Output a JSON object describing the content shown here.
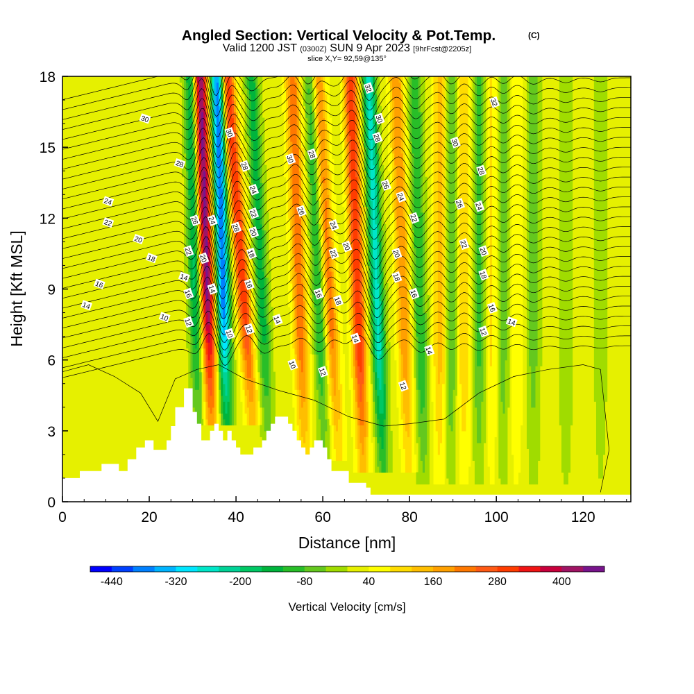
{
  "title": {
    "main": "Angled Section: Vertical Velocity & Pot.Temp.",
    "main_tag": "(C)",
    "valid_prefix": "Valid 1200 JST",
    "valid_utc": "(0300Z)",
    "valid_date": "SUN 9 Apr 2023",
    "forecast": "[9hrFcst@2205z]",
    "slice": "slice X,Y= 92,59@135°"
  },
  "chart_data": {
    "type": "heatmap",
    "xlabel": "Distance [nm]",
    "ylabel": "Height [Kft MSL]",
    "xlim": [
      0,
      131
    ],
    "ylim": [
      0,
      18
    ],
    "x_ticks": [
      0,
      20,
      40,
      60,
      80,
      100,
      120
    ],
    "y_ticks": [
      0,
      3,
      6,
      9,
      12,
      15,
      18
    ],
    "colorbar": {
      "title": "Vertical Velocity [cm/s]",
      "levels": [
        -480,
        -440,
        -400,
        -360,
        -320,
        -280,
        -240,
        -200,
        -160,
        -120,
        -80,
        -40,
        0,
        40,
        80,
        120,
        160,
        200,
        240,
        280,
        320,
        360,
        400,
        440,
        480
      ],
      "colors": [
        "#0000ff",
        "#0040ff",
        "#0080ff",
        "#00b4ff",
        "#00e6ff",
        "#00e6c8",
        "#00d296",
        "#00c864",
        "#00b43c",
        "#28be28",
        "#64c81e",
        "#a0dc00",
        "#e6f000",
        "#ffff00",
        "#ffdc00",
        "#ffbe00",
        "#ffa000",
        "#ff7800",
        "#ff5a14",
        "#ff3c00",
        "#f01414",
        "#c8003c",
        "#a01464",
        "#78148c"
      ],
      "tick_labels": [
        -440,
        -320,
        -200,
        -80,
        40,
        160,
        280,
        400
      ]
    },
    "terrain_kft": [
      [
        0,
        1.0
      ],
      [
        4,
        1.0
      ],
      [
        4,
        1.3
      ],
      [
        9,
        1.3
      ],
      [
        9,
        1.6
      ],
      [
        13,
        1.6
      ],
      [
        13,
        1.3
      ],
      [
        15,
        1.3
      ],
      [
        15,
        1.8
      ],
      [
        17,
        1.8
      ],
      [
        17,
        2.3
      ],
      [
        19,
        2.3
      ],
      [
        19,
        2.6
      ],
      [
        21,
        2.6
      ],
      [
        21,
        2.2
      ],
      [
        24,
        2.2
      ],
      [
        24,
        2.6
      ],
      [
        25,
        2.6
      ],
      [
        25,
        3.2
      ],
      [
        26,
        3.2
      ],
      [
        26,
        4.0
      ],
      [
        28,
        4.0
      ],
      [
        28,
        4.8
      ],
      [
        30,
        4.8
      ],
      [
        30,
        3.8
      ],
      [
        31,
        3.8
      ],
      [
        31,
        3.3
      ],
      [
        32,
        3.3
      ],
      [
        32,
        2.6
      ],
      [
        34,
        2.6
      ],
      [
        34,
        3.0
      ],
      [
        35,
        3.0
      ],
      [
        35,
        3.3
      ],
      [
        36,
        3.3
      ],
      [
        36,
        3.0
      ],
      [
        37,
        3.0
      ],
      [
        37,
        2.6
      ],
      [
        38,
        2.6
      ],
      [
        38,
        3.0
      ],
      [
        39,
        3.0
      ],
      [
        39,
        2.6
      ],
      [
        40,
        2.6
      ],
      [
        40,
        2.3
      ],
      [
        41,
        2.3
      ],
      [
        41,
        2.0
      ],
      [
        44,
        2.0
      ],
      [
        44,
        2.3
      ],
      [
        46,
        2.3
      ],
      [
        46,
        2.6
      ],
      [
        47,
        2.6
      ],
      [
        47,
        3.0
      ],
      [
        48,
        3.0
      ],
      [
        48,
        3.3
      ],
      [
        49,
        3.3
      ],
      [
        49,
        3.6
      ],
      [
        52,
        3.6
      ],
      [
        52,
        3.3
      ],
      [
        53,
        3.3
      ],
      [
        53,
        3.0
      ],
      [
        54,
        3.0
      ],
      [
        54,
        2.6
      ],
      [
        55,
        2.6
      ],
      [
        55,
        2.3
      ],
      [
        56,
        2.3
      ],
      [
        56,
        2.0
      ],
      [
        57,
        2.0
      ],
      [
        57,
        2.3
      ],
      [
        58,
        2.3
      ],
      [
        58,
        2.6
      ],
      [
        60,
        2.6
      ],
      [
        60,
        2.3
      ],
      [
        61,
        2.3
      ],
      [
        61,
        1.8
      ],
      [
        62,
        1.8
      ],
      [
        62,
        1.3
      ],
      [
        66,
        1.3
      ],
      [
        66,
        0.8
      ],
      [
        70,
        0.8
      ],
      [
        70,
        0.6
      ],
      [
        71,
        0.6
      ],
      [
        71,
        0.3
      ],
      [
        131,
        0.3
      ]
    ],
    "updraft_axes": [
      {
        "x": 34.0,
        "y": 5.5,
        "slope": -0.18,
        "strength": 440
      },
      {
        "x": 43.0,
        "y": 5.5,
        "slope": -0.4,
        "strength": 300
      },
      {
        "x": 55.5,
        "y": 4.0,
        "slope": -0.18,
        "strength": 220
      },
      {
        "x": 63.0,
        "y": 4.0,
        "slope": -0.3,
        "strength": 200
      },
      {
        "x": 69.0,
        "y": 3.5,
        "slope": -0.18,
        "strength": 300
      },
      {
        "x": 79.5,
        "y": 3.5,
        "slope": -0.18,
        "strength": 180
      },
      {
        "x": 87.0,
        "y": 3.0,
        "slope": 0.0,
        "strength": 120
      },
      {
        "x": 92.5,
        "y": 3.0,
        "slope": 0.0,
        "strength": 100
      },
      {
        "x": 99.0,
        "y": 3.0,
        "slope": 0.0,
        "strength": 70
      },
      {
        "x": 104.5,
        "y": 3.0,
        "slope": 0.0,
        "strength": 60
      }
    ],
    "downdraft_axes": [
      {
        "x": 31.0,
        "y": 5.5,
        "slope": -0.12,
        "strength": 200
      },
      {
        "x": 37.5,
        "y": 5.5,
        "slope": -0.15,
        "strength": 420
      },
      {
        "x": 47.0,
        "y": 4.5,
        "slope": -0.25,
        "strength": 160
      },
      {
        "x": 60.0,
        "y": 4.0,
        "slope": -0.2,
        "strength": 150
      },
      {
        "x": 73.5,
        "y": 3.5,
        "slope": -0.2,
        "strength": 280
      },
      {
        "x": 83.0,
        "y": 3.0,
        "slope": -0.12,
        "strength": 140
      },
      {
        "x": 89.5,
        "y": 3.0,
        "slope": 0.0,
        "strength": 110
      },
      {
        "x": 96.0,
        "y": 3.0,
        "slope": 0.0,
        "strength": 110
      },
      {
        "x": 101.5,
        "y": 3.0,
        "slope": 0.0,
        "strength": 90
      },
      {
        "x": 108.5,
        "y": 3.0,
        "slope": 0.0,
        "strength": 80
      },
      {
        "x": 116.0,
        "y": 3.0,
        "slope": 0.0,
        "strength": 60
      },
      {
        "x": 124.0,
        "y": 3.0,
        "slope": 0.0,
        "strength": 50
      }
    ],
    "isentrope_labels": [
      {
        "text": "30",
        "x": 19,
        "y": 16.2
      },
      {
        "text": "30",
        "x": 38.5,
        "y": 15.6
      },
      {
        "text": "30",
        "x": 52.5,
        "y": 14.5
      },
      {
        "text": "28",
        "x": 27,
        "y": 14.3
      },
      {
        "text": "28",
        "x": 42,
        "y": 14.2
      },
      {
        "text": "28",
        "x": 57.5,
        "y": 14.7
      },
      {
        "text": "32",
        "x": 70.5,
        "y": 17.5
      },
      {
        "text": "30",
        "x": 73,
        "y": 16.2
      },
      {
        "text": "28",
        "x": 72.5,
        "y": 15.4
      },
      {
        "text": "32",
        "x": 99.5,
        "y": 16.9
      },
      {
        "text": "30",
        "x": 90.5,
        "y": 15.2
      },
      {
        "text": "28",
        "x": 96.5,
        "y": 14.0
      },
      {
        "text": "24",
        "x": 10.5,
        "y": 12.7
      },
      {
        "text": "22",
        "x": 10.5,
        "y": 11.8
      },
      {
        "text": "20",
        "x": 17.5,
        "y": 11.1
      },
      {
        "text": "18",
        "x": 20.5,
        "y": 10.3
      },
      {
        "text": "16",
        "x": 8.5,
        "y": 9.2
      },
      {
        "text": "14",
        "x": 5.5,
        "y": 8.3
      },
      {
        "text": "10",
        "x": 23.5,
        "y": 7.8
      },
      {
        "text": "12",
        "x": 29,
        "y": 7.6
      },
      {
        "text": "14",
        "x": 28,
        "y": 9.5
      },
      {
        "text": "16",
        "x": 29,
        "y": 8.8
      },
      {
        "text": "22",
        "x": 29,
        "y": 10.6
      },
      {
        "text": "20",
        "x": 32.5,
        "y": 10.3
      },
      {
        "text": "26",
        "x": 30.5,
        "y": 11.9
      },
      {
        "text": "24",
        "x": 34.5,
        "y": 11.9
      },
      {
        "text": "14",
        "x": 34.5,
        "y": 9.0
      },
      {
        "text": "10",
        "x": 38.5,
        "y": 7.1
      },
      {
        "text": "28",
        "x": 40,
        "y": 11.6
      },
      {
        "text": "24",
        "x": 44,
        "y": 13.2
      },
      {
        "text": "22",
        "x": 44,
        "y": 12.2
      },
      {
        "text": "20",
        "x": 44,
        "y": 11.4
      },
      {
        "text": "18",
        "x": 43.5,
        "y": 10.5
      },
      {
        "text": "16",
        "x": 43,
        "y": 9.2
      },
      {
        "text": "12",
        "x": 43,
        "y": 7.3
      },
      {
        "text": "14",
        "x": 49.5,
        "y": 7.7
      },
      {
        "text": "26",
        "x": 55,
        "y": 12.3
      },
      {
        "text": "10",
        "x": 53,
        "y": 5.8
      },
      {
        "text": "16",
        "x": 59,
        "y": 8.8
      },
      {
        "text": "12",
        "x": 60,
        "y": 5.5
      },
      {
        "text": "24",
        "x": 62.5,
        "y": 11.7
      },
      {
        "text": "22",
        "x": 62.5,
        "y": 10.5
      },
      {
        "text": "20",
        "x": 65.5,
        "y": 10.8
      },
      {
        "text": "18",
        "x": 63.5,
        "y": 8.5
      },
      {
        "text": "14",
        "x": 67.5,
        "y": 6.9
      },
      {
        "text": "26",
        "x": 74.5,
        "y": 13.4
      },
      {
        "text": "24",
        "x": 78,
        "y": 12.9
      },
      {
        "text": "22",
        "x": 81,
        "y": 12.0
      },
      {
        "text": "20",
        "x": 77,
        "y": 10.5
      },
      {
        "text": "18",
        "x": 77,
        "y": 9.5
      },
      {
        "text": "16",
        "x": 81,
        "y": 8.8
      },
      {
        "text": "14",
        "x": 84.5,
        "y": 6.4
      },
      {
        "text": "12",
        "x": 78.5,
        "y": 4.9
      },
      {
        "text": "26",
        "x": 91.5,
        "y": 12.6
      },
      {
        "text": "24",
        "x": 96,
        "y": 12.5
      },
      {
        "text": "22",
        "x": 92.5,
        "y": 10.9
      },
      {
        "text": "20",
        "x": 97,
        "y": 10.6
      },
      {
        "text": "18",
        "x": 97,
        "y": 9.6
      },
      {
        "text": "16",
        "x": 99,
        "y": 8.2
      },
      {
        "text": "14",
        "x": 103.5,
        "y": 7.6
      },
      {
        "text": "12",
        "x": 97,
        "y": 7.2
      }
    ]
  }
}
